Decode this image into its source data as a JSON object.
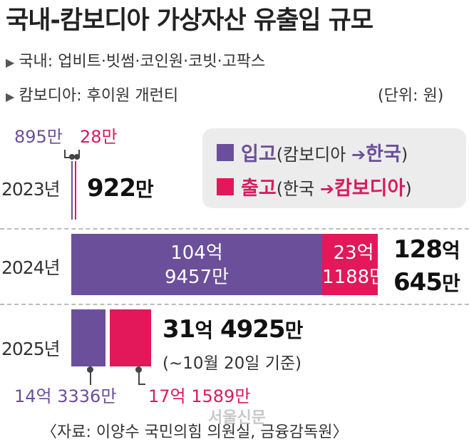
{
  "title": "국내-캄보디아 가상자산 유출입 규모",
  "subtitle": {
    "domestic": "국내: 업비트·빗썸·코인원·코빗·고팍스",
    "cambodia": "캄보디아: 후이원 개런티",
    "unit": "(단위: 원)"
  },
  "legend": {
    "inflow_label": "입고",
    "inflow_detail_from": "(캄보디아",
    "inflow_detail_to": "한국",
    "inflow_detail_close": ")",
    "outflow_label": "출고",
    "outflow_detail_from": "(한국",
    "outflow_detail_to": "캄보디아",
    "outflow_detail_close": ")"
  },
  "colors": {
    "inflow": "#6b4f9b",
    "outflow": "#e2185b"
  },
  "rows": {
    "y2023": {
      "year": "2023년",
      "inflow_label": "895만",
      "outflow_label": "28만",
      "total_num": "922",
      "total_unit": "만"
    },
    "y2024": {
      "year": "2024년",
      "inflow_line1": "104억",
      "inflow_line2": "9457만",
      "outflow_line1": "23억",
      "outflow_line2": "1188만",
      "total_line1_num": "128",
      "total_line1_unit": "억",
      "total_line2_num": "645",
      "total_line2_unit": "만"
    },
    "y2025": {
      "year": "2025년",
      "total_a_num": "31",
      "total_a_unit": "억",
      "total_b_num": "4925",
      "total_b_unit": "만",
      "note": "(~10월 20일 기준)",
      "inflow_label": "14억 3336만",
      "outflow_label": "17억 1589만"
    }
  },
  "chart_data": {
    "type": "bar",
    "title": "국내-캄보디아 가상자산 유출입 규모",
    "unit": "원",
    "categories": [
      "2023년",
      "2024년",
      "2025년"
    ],
    "series": [
      {
        "name": "입고(캄보디아→한국)",
        "values": [
          8950000,
          10494570000,
          1433360000
        ]
      },
      {
        "name": "출고(한국→캄보디아)",
        "values": [
          280000,
          2311880000,
          1715890000
        ]
      }
    ],
    "totals": [
      9220000,
      12806450000,
      3149250000
    ],
    "annotations": [
      "(~10월 20일 기준)"
    ]
  },
  "source": "〈자료: 이양수 국민의힘 의원실, 금융감독원〉",
  "watermark": "서울신문"
}
